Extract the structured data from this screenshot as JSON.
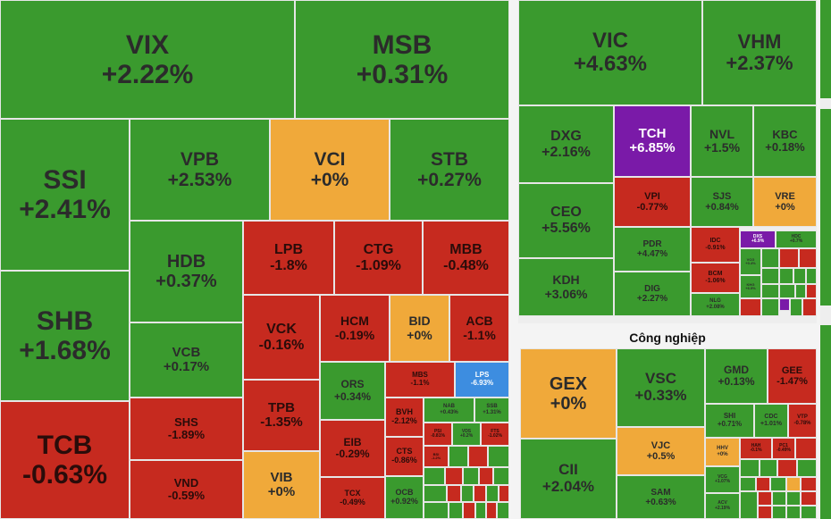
{
  "colors": {
    "green": "#3a9a2e",
    "red": "#c62a1f",
    "yellow": "#f0a93a",
    "purple": "#7a1aa8",
    "blue": "#3d8de0"
  },
  "finance": {
    "VIX": {
      "ticker": "VIX",
      "change": "+2.22%"
    },
    "MSB": {
      "ticker": "MSB",
      "change": "+0.31%"
    },
    "SSI": {
      "ticker": "SSI",
      "change": "+2.41%"
    },
    "SHB": {
      "ticker": "SHB",
      "change": "+1.68%"
    },
    "TCB": {
      "ticker": "TCB",
      "change": "-0.63%"
    },
    "VPB": {
      "ticker": "VPB",
      "change": "+2.53%"
    },
    "VCI": {
      "ticker": "VCI",
      "change": "+0%"
    },
    "STB": {
      "ticker": "STB",
      "change": "+0.27%"
    },
    "HDB": {
      "ticker": "HDB",
      "change": "+0.37%"
    },
    "VCB": {
      "ticker": "VCB",
      "change": "+0.17%"
    },
    "SHS": {
      "ticker": "SHS",
      "change": "-1.89%"
    },
    "VND": {
      "ticker": "VND",
      "change": "-0.59%"
    },
    "LPB": {
      "ticker": "LPB",
      "change": "-1.8%"
    },
    "CTG": {
      "ticker": "CTG",
      "change": "-1.09%"
    },
    "MBB": {
      "ticker": "MBB",
      "change": "-0.48%"
    },
    "VCK": {
      "ticker": "VCK",
      "change": "-0.16%"
    },
    "HCM": {
      "ticker": "HCM",
      "change": "-0.19%"
    },
    "BID": {
      "ticker": "BID",
      "change": "+0%"
    },
    "ACB": {
      "ticker": "ACB",
      "change": "-1.1%"
    },
    "TPB": {
      "ticker": "TPB",
      "change": "-1.35%"
    },
    "VIB": {
      "ticker": "VIB",
      "change": "+0%"
    },
    "ORS": {
      "ticker": "ORS",
      "change": "+0.34%"
    },
    "MBS": {
      "ticker": "MBS",
      "change": "-1.1%"
    },
    "LPS": {
      "ticker": "LPS",
      "change": "-6.93%"
    },
    "EIB": {
      "ticker": "EIB",
      "change": "-0.29%"
    },
    "BVH": {
      "ticker": "BVH",
      "change": "-2.12%"
    },
    "NAB": {
      "ticker": "NAB",
      "change": "+0.43%"
    },
    "SSB": {
      "ticker": "SSB",
      "change": "+1.31%"
    },
    "CTS": {
      "ticker": "CTS",
      "change": "-0.86%"
    },
    "TCX": {
      "ticker": "TCX",
      "change": "-0.49%"
    },
    "OCB": {
      "ticker": "OCB",
      "change": "+0.92%"
    },
    "PSI": {
      "ticker": "PSI",
      "change": "-0.81%"
    },
    "VDS": {
      "ticker": "VDS",
      "change": "+0.2%"
    },
    "FTS": {
      "ticker": "FTS",
      "change": "-1.02%"
    },
    "BSI": {
      "ticker": "BSI",
      "change": "-1.2%"
    }
  },
  "realestate": {
    "VIC": {
      "ticker": "VIC",
      "change": "+4.63%"
    },
    "VHM": {
      "ticker": "VHM",
      "change": "+2.37%"
    },
    "DXG": {
      "ticker": "DXG",
      "change": "+2.16%"
    },
    "TCH": {
      "ticker": "TCH",
      "change": "+6.85%"
    },
    "NVL": {
      "ticker": "NVL",
      "change": "+1.5%"
    },
    "KBC": {
      "ticker": "KBC",
      "change": "+0.18%"
    },
    "CEO": {
      "ticker": "CEO",
      "change": "+5.56%"
    },
    "VPI": {
      "ticker": "VPI",
      "change": "-0.77%"
    },
    "SJS": {
      "ticker": "SJS",
      "change": "+0.84%"
    },
    "VRE": {
      "ticker": "VRE",
      "change": "+0%"
    },
    "KDH": {
      "ticker": "KDH",
      "change": "+3.06%"
    },
    "PDR": {
      "ticker": "PDR",
      "change": "+4.47%"
    },
    "IDC": {
      "ticker": "IDC",
      "change": "-0.91%"
    },
    "DXS": {
      "ticker": "DXS",
      "change": "+6.9%"
    },
    "HDC": {
      "ticker": "HDC",
      "change": "+0.7%"
    },
    "DIG": {
      "ticker": "DIG",
      "change": "+2.27%"
    },
    "BCM": {
      "ticker": "BCM",
      "change": "-1.06%"
    },
    "VCG": {
      "ticker": "VCG",
      "change": "+0.4%"
    },
    "KHG": {
      "ticker": "KHG",
      "change": "+6.9%"
    },
    "NLG": {
      "ticker": "NLG",
      "change": "+2.08%"
    }
  },
  "industry": {
    "title": "Công nghiệp",
    "GEX": {
      "ticker": "GEX",
      "change": "+0%"
    },
    "VSC": {
      "ticker": "VSC",
      "change": "+0.33%"
    },
    "GMD": {
      "ticker": "GMD",
      "change": "+0.13%"
    },
    "GEE": {
      "ticker": "GEE",
      "change": "-1.47%"
    },
    "CII": {
      "ticker": "CII",
      "change": "+2.04%"
    },
    "VJC": {
      "ticker": "VJC",
      "change": "+0.5%"
    },
    "SHI": {
      "ticker": "SHI",
      "change": "+0.71%"
    },
    "CDC": {
      "ticker": "CDC",
      "change": "+1.01%"
    },
    "VTP": {
      "ticker": "VTP",
      "change": "-0.78%"
    },
    "SAM": {
      "ticker": "SAM",
      "change": "+0.63%"
    },
    "HHV": {
      "ticker": "HHV",
      "change": "+0%"
    },
    "HAH": {
      "ticker": "HAH",
      "change": "-0.1%"
    },
    "PC1": {
      "ticker": "PC1",
      "change": "-0.49%"
    },
    "VCG": {
      "ticker": "VCG",
      "change": "+1.07%"
    },
    "ACV": {
      "ticker": "ACV",
      "change": "+2.19%"
    }
  }
}
